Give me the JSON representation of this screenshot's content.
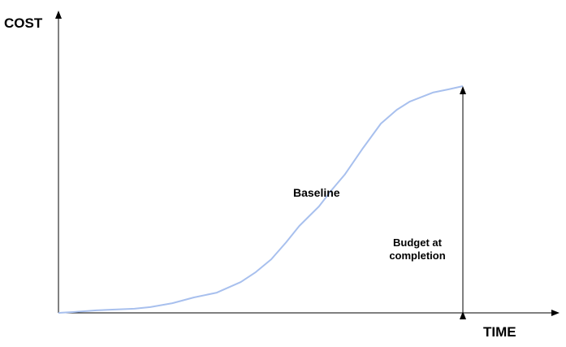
{
  "chart_data": {
    "type": "line",
    "title": "",
    "ylabel": "COST",
    "xlabel": "TIME",
    "xlim": [
      0,
      100
    ],
    "ylim": [
      0,
      100
    ],
    "grid": false,
    "legend": "none",
    "series": [
      {
        "name": "Baseline",
        "color": "#a8c0ee",
        "x": [
          0,
          3.4,
          8.1,
          11.5,
          16.2,
          19.6,
          24.3,
          28.9,
          33.8,
          38.9,
          42.1,
          45.4,
          48.6,
          51.4,
          55.6,
          58.3,
          61.1,
          65.0,
          68.8,
          72.2,
          75.0,
          79.9,
          83.3,
          86.3
        ],
        "y": [
          0,
          0.4,
          1.1,
          1.4,
          1.8,
          2.5,
          4.2,
          6.7,
          8.8,
          13.4,
          17.7,
          23.3,
          30.7,
          37.8,
          46.3,
          53.4,
          60.1,
          71.7,
          82.3,
          88.3,
          91.9,
          95.8,
          97.2,
          98.6
        ]
      }
    ],
    "annotations": [
      {
        "text": "Baseline"
      },
      {
        "lines": [
          "Budget at",
          "completion"
        ],
        "arrow": "double-headed vertical from x-axis to end of baseline"
      }
    ]
  }
}
